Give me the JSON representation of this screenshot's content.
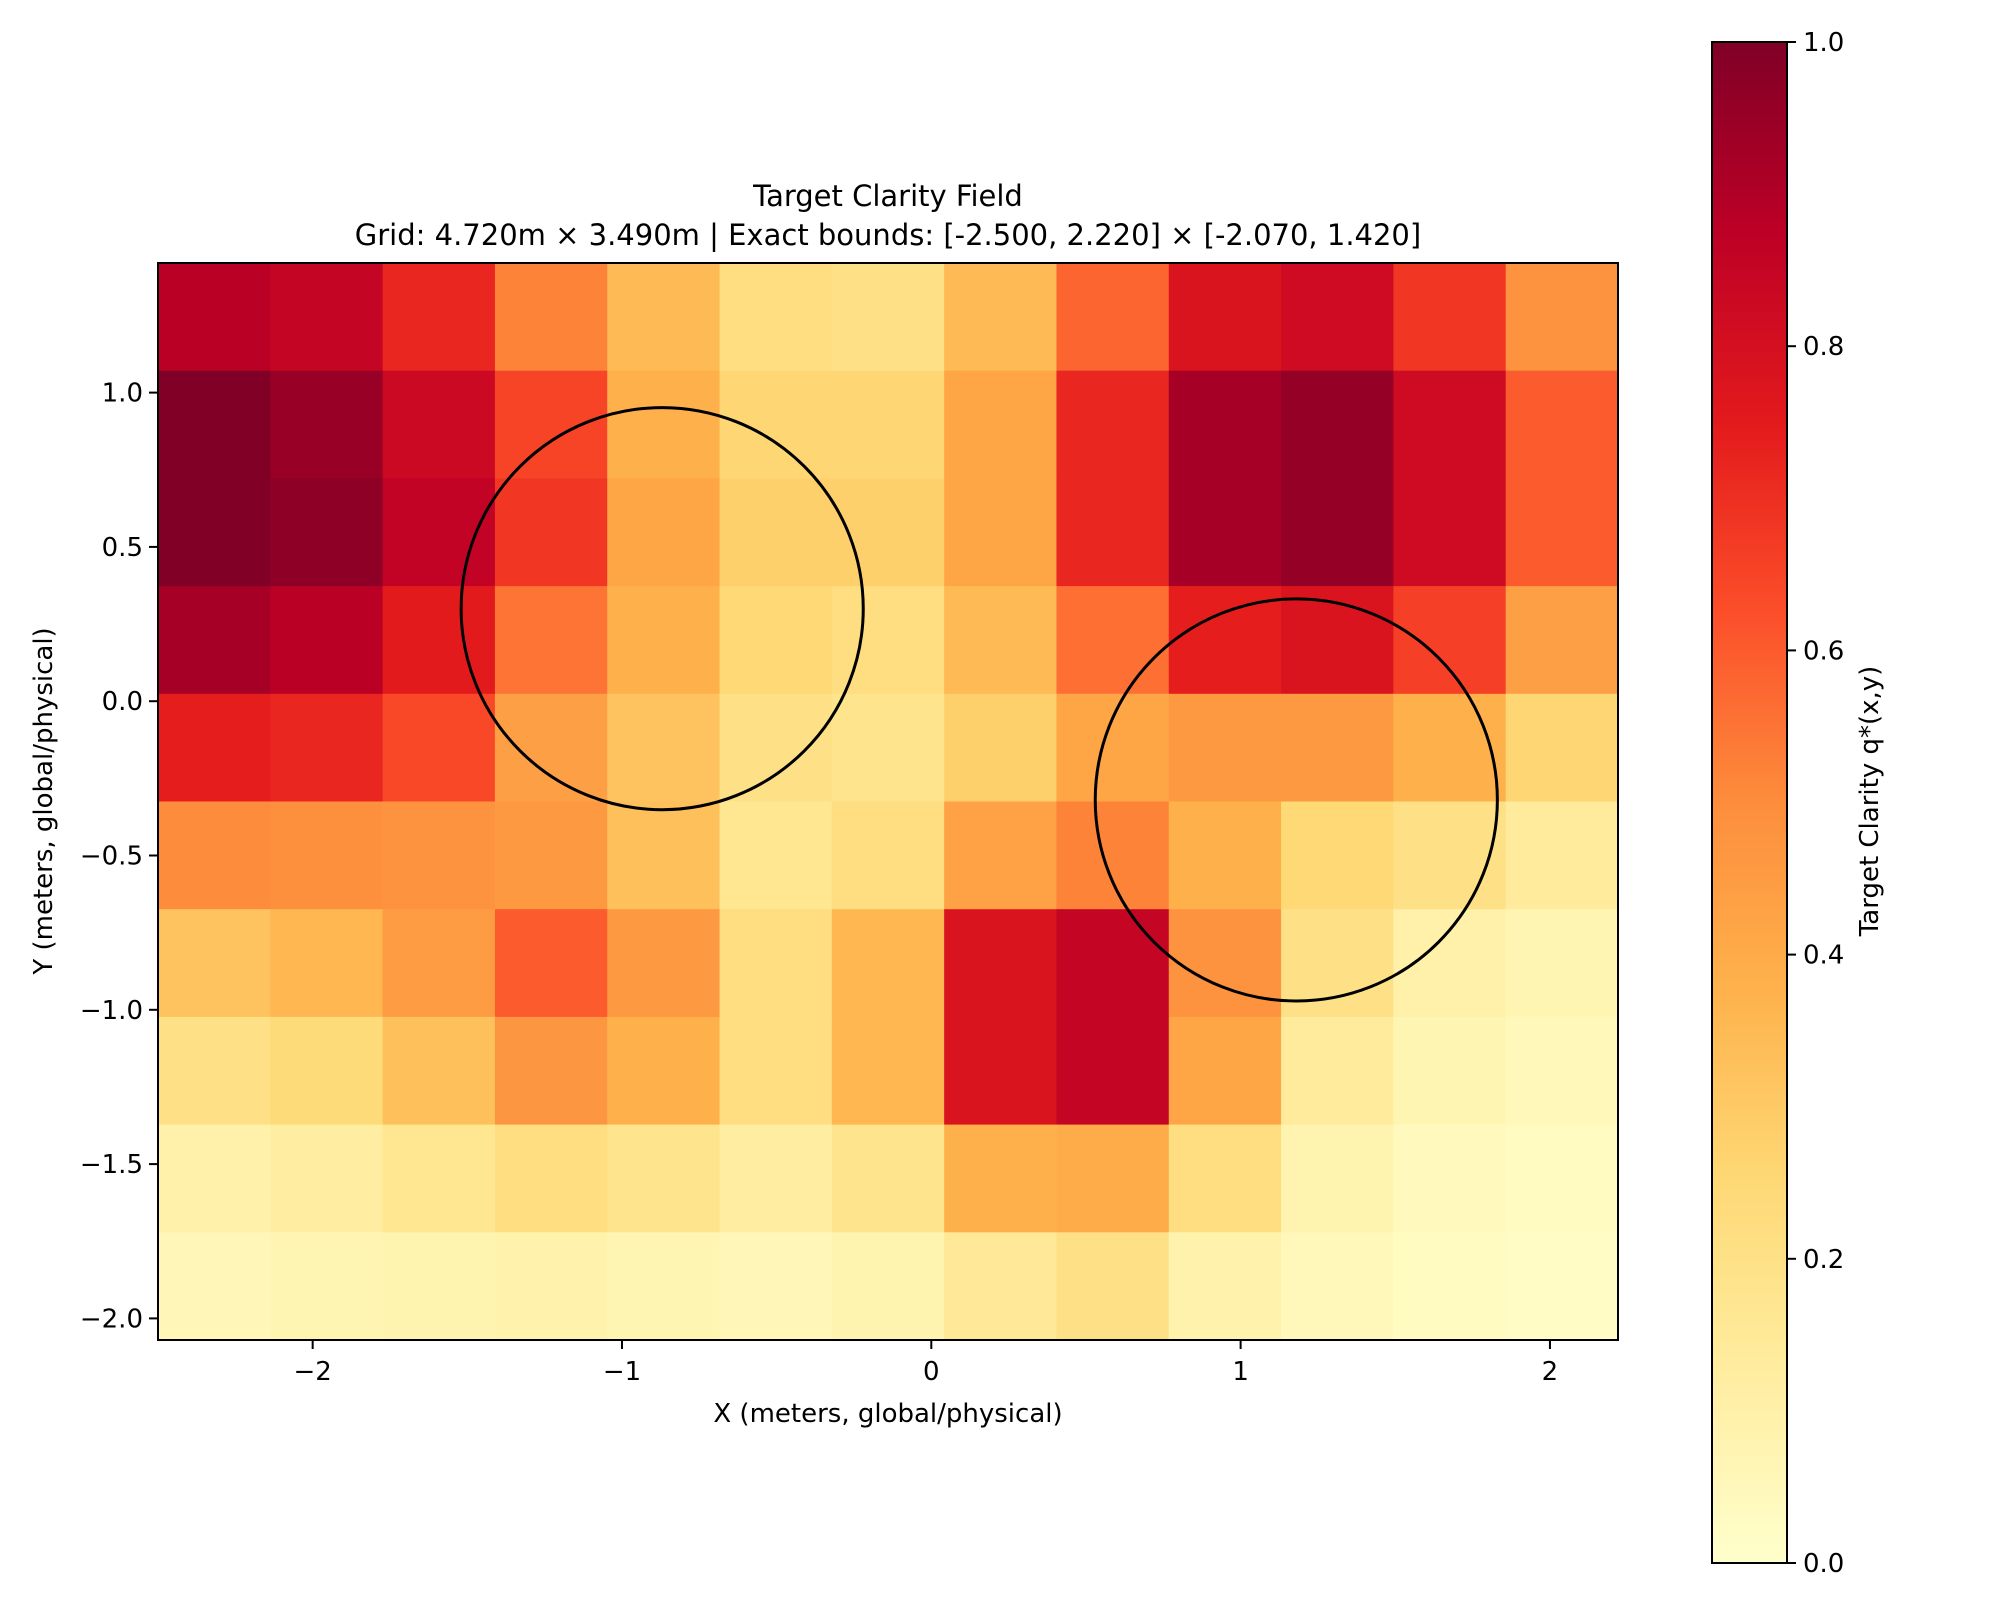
{
  "chart_data": {
    "type": "heatmap",
    "title": "Target Clarity Field",
    "subtitle": "Grid: 4.720m × 3.490m | Exact bounds: [-2.500, 2.220] × [-2.070, 1.420]",
    "xlabel": "X (meters, global/physical)",
    "ylabel": "Y (meters, global/physical)",
    "xlim": [
      -2.5,
      2.22
    ],
    "ylim": [
      -2.07,
      1.42
    ],
    "x_ticks": [
      -2,
      -1,
      0,
      1,
      2
    ],
    "x_tick_labels": [
      "−2",
      "−1",
      "0",
      "1",
      "2"
    ],
    "y_ticks": [
      -2.0,
      -1.5,
      -1.0,
      -0.5,
      0.0,
      0.5,
      1.0
    ],
    "y_tick_labels": [
      "−2.0",
      "−1.5",
      "−1.0",
      "−0.5",
      "0.0",
      "0.5",
      "1.0"
    ],
    "colormap": "YlOrRd",
    "colormap_stops": [
      "#ffffcc",
      "#ffeda0",
      "#fed976",
      "#feb24c",
      "#fd8d3c",
      "#fc4e2a",
      "#e31a1c",
      "#bd0026",
      "#800026"
    ],
    "colorbar": {
      "label": "Target Clarity q*(x,y)",
      "range": [
        0,
        1
      ],
      "ticks": [
        0.0,
        0.2,
        0.4,
        0.6,
        0.8,
        1.0
      ],
      "tick_labels": [
        "0.0",
        "0.2",
        "0.4",
        "0.6",
        "0.8",
        "1.0"
      ]
    },
    "grid_cols": 13,
    "grid_rows": 10,
    "values_top_to_bottom": [
      [
        0.88,
        0.85,
        0.72,
        0.52,
        0.35,
        0.22,
        0.2,
        0.35,
        0.58,
        0.78,
        0.82,
        0.68,
        0.48
      ],
      [
        1.0,
        0.95,
        0.83,
        0.65,
        0.38,
        0.26,
        0.26,
        0.42,
        0.72,
        0.92,
        0.96,
        0.82,
        0.6
      ],
      [
        1.0,
        0.97,
        0.86,
        0.68,
        0.42,
        0.28,
        0.28,
        0.42,
        0.72,
        0.92,
        0.96,
        0.82,
        0.6
      ],
      [
        0.92,
        0.88,
        0.75,
        0.55,
        0.38,
        0.25,
        0.22,
        0.35,
        0.56,
        0.74,
        0.78,
        0.66,
        0.44
      ],
      [
        0.74,
        0.72,
        0.64,
        0.44,
        0.32,
        0.2,
        0.18,
        0.28,
        0.42,
        0.46,
        0.46,
        0.38,
        0.26
      ],
      [
        0.5,
        0.49,
        0.48,
        0.46,
        0.33,
        0.17,
        0.22,
        0.43,
        0.52,
        0.38,
        0.25,
        0.2,
        0.14
      ],
      [
        0.32,
        0.36,
        0.45,
        0.6,
        0.46,
        0.22,
        0.36,
        0.78,
        0.85,
        0.48,
        0.2,
        0.1,
        0.07
      ],
      [
        0.2,
        0.24,
        0.33,
        0.47,
        0.38,
        0.22,
        0.36,
        0.78,
        0.85,
        0.42,
        0.14,
        0.07,
        0.05
      ],
      [
        0.1,
        0.12,
        0.17,
        0.22,
        0.18,
        0.12,
        0.18,
        0.38,
        0.4,
        0.22,
        0.08,
        0.04,
        0.03
      ],
      [
        0.06,
        0.07,
        0.08,
        0.09,
        0.07,
        0.06,
        0.08,
        0.15,
        0.2,
        0.09,
        0.05,
        0.03,
        0.02
      ]
    ],
    "circles": [
      {
        "name": "region-1",
        "cx": -0.87,
        "cy": 0.3,
        "r": 0.65
      },
      {
        "name": "region-2",
        "cx": 1.18,
        "cy": -0.32,
        "r": 0.65
      }
    ]
  }
}
